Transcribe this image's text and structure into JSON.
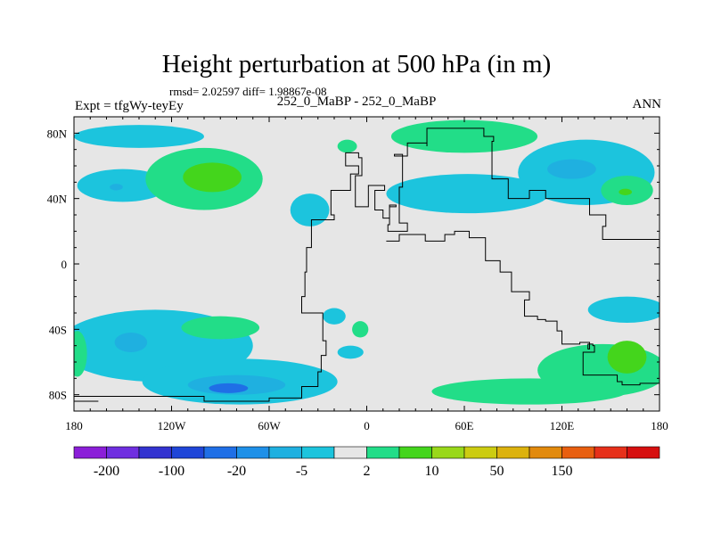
{
  "header": {
    "title": "Height perturbation at 500 hPa (in m)",
    "stats": "rmsd= 2.02597  diff= 1.98867e-08",
    "experiment": "Expt = tfgWy-teyEy",
    "comparison": "252_0_MaBP - 252_0_MaBP",
    "season": "ANN"
  },
  "chart_data": {
    "type": "heatmap",
    "title": "Height perturbation at 500 hPa (in m)",
    "projection": "cylindrical-equidistant",
    "xlim": [
      -180,
      180
    ],
    "ylim": [
      -90,
      90
    ],
    "x_ticks": [
      {
        "value": -180,
        "label": "180"
      },
      {
        "value": -120,
        "label": "120W"
      },
      {
        "value": -60,
        "label": "60W"
      },
      {
        "value": 0,
        "label": "0"
      },
      {
        "value": 60,
        "label": "60E"
      },
      {
        "value": 120,
        "label": "120E"
      },
      {
        "value": 180,
        "label": "180"
      }
    ],
    "y_ticks": [
      {
        "value": 80,
        "label": "80N"
      },
      {
        "value": 40,
        "label": "40N"
      },
      {
        "value": 0,
        "label": "0"
      },
      {
        "value": -40,
        "label": "40S"
      },
      {
        "value": -80,
        "label": "80S"
      }
    ],
    "colorbar": {
      "colors": [
        "#8b1ed8",
        "#6f2ee0",
        "#3333d0",
        "#1f46d8",
        "#1f6fe6",
        "#1e90e8",
        "#1fb0e0",
        "#1cc4dd",
        "#e6e6e6",
        "#22dd88",
        "#44d51c",
        "#99d81a",
        "#cccc11",
        "#dcb20e",
        "#e28a0d",
        "#e85f10",
        "#e6301a",
        "#d60f0f"
      ],
      "labels": [
        "-200",
        "-100",
        "-20",
        "-5",
        "2",
        "10",
        "50",
        "150"
      ],
      "label_boundaries": [
        1,
        3,
        5,
        7,
        9,
        11,
        13,
        15
      ]
    },
    "field_background": "#e6e6e6",
    "regions": [
      {
        "name": "N Pacific 80N band",
        "level": "-5",
        "color": "#1cc4dd",
        "lon": -140,
        "lat": 78,
        "rlon": 40,
        "rlat": 7
      },
      {
        "name": "NW Pacific low",
        "level": "-5",
        "color": "#1cc4dd",
        "lon": -150,
        "lat": 48,
        "rlon": 28,
        "rlat": 10
      },
      {
        "name": "NW Pacific core",
        "level": "-20",
        "color": "#1fb0e0",
        "lon": -154,
        "lat": 47,
        "rlon": 4,
        "rlat": 2
      },
      {
        "name": "N America high",
        "level": "2",
        "color": "#22dd88",
        "lon": -100,
        "lat": 52,
        "rlon": 36,
        "rlat": 19
      },
      {
        "name": "N America high core",
        "level": "10",
        "color": "#44d51c",
        "lon": -95,
        "lat": 53,
        "rlon": 18,
        "rlat": 9
      },
      {
        "name": "Atlantic high",
        "level": "2",
        "color": "#22dd88",
        "lon": -12,
        "lat": 72,
        "rlon": 6,
        "rlat": 4
      },
      {
        "name": "Atlantic low",
        "level": "-5",
        "color": "#1cc4dd",
        "lon": -35,
        "lat": 33,
        "rlon": 12,
        "rlat": 10
      },
      {
        "name": "Arctic high",
        "level": "2",
        "color": "#22dd88",
        "lon": 60,
        "lat": 78,
        "rlon": 45,
        "rlat": 10
      },
      {
        "name": "Europe low",
        "level": "-5",
        "color": "#1cc4dd",
        "lon": 62,
        "lat": 43,
        "rlon": 50,
        "rlat": 12
      },
      {
        "name": "Siberian low",
        "level": "-5",
        "color": "#1cc4dd",
        "lon": 135,
        "lat": 56,
        "rlon": 42,
        "rlat": 20
      },
      {
        "name": "Siberian low core",
        "level": "-20",
        "color": "#1fb0e0",
        "lon": 126,
        "lat": 58,
        "rlon": 15,
        "rlat": 6
      },
      {
        "name": "NE Pacific high",
        "level": "2",
        "color": "#22dd88",
        "lon": 160,
        "lat": 45,
        "rlon": 16,
        "rlat": 9
      },
      {
        "name": "NE Pacific high core",
        "level": "10",
        "color": "#44d51c",
        "lon": 159,
        "lat": 44,
        "rlon": 4,
        "rlat": 2
      },
      {
        "name": "S Pacific band",
        "level": "-5",
        "color": "#1cc4dd",
        "lon": -130,
        "lat": -50,
        "rlon": 60,
        "rlat": 22
      },
      {
        "name": "S Pacific low",
        "level": "-5",
        "color": "#1cc4dd",
        "lon": -78,
        "lat": -72,
        "rlon": 60,
        "rlat": 14
      },
      {
        "name": "S Pacific low core",
        "level": "-20",
        "color": "#1fb0e0",
        "lon": -145,
        "lat": -48,
        "rlon": 10,
        "rlat": 6
      },
      {
        "name": "S Ocean core",
        "level": "-20",
        "color": "#1fb0e0",
        "lon": -80,
        "lat": -74,
        "rlon": 30,
        "rlat": 6
      },
      {
        "name": "S Ocean deep core",
        "level": "-100",
        "color": "#1f6fe6",
        "lon": -85,
        "lat": -76,
        "rlon": 12,
        "rlat": 3
      },
      {
        "name": "S Pacific high",
        "level": "2",
        "color": "#22dd88",
        "lon": -90,
        "lat": -39,
        "rlon": 24,
        "rlat": 7
      },
      {
        "name": "S Atlantic low",
        "level": "-5",
        "color": "#1cc4dd",
        "lon": -20,
        "lat": -32,
        "rlon": 7,
        "rlat": 5
      },
      {
        "name": "S Atlantic low 2",
        "level": "-5",
        "color": "#1cc4dd",
        "lon": -10,
        "lat": -54,
        "rlon": 8,
        "rlat": 4
      },
      {
        "name": "S Indian high",
        "level": "2",
        "color": "#22dd88",
        "lon": -4,
        "lat": -40,
        "rlon": 5,
        "rlat": 5
      },
      {
        "name": "SW Pacific low",
        "level": "-5",
        "color": "#1cc4dd",
        "lon": 160,
        "lat": -28,
        "rlon": 24,
        "rlat": 8
      },
      {
        "name": "Australia high",
        "level": "2",
        "color": "#22dd88",
        "lon": 145,
        "lat": -65,
        "rlon": 40,
        "rlat": 16
      },
      {
        "name": "Australia high core",
        "level": "10",
        "color": "#44d51c",
        "lon": 160,
        "lat": -57,
        "rlon": 12,
        "rlat": 10
      },
      {
        "name": "S Ocean high band",
        "level": "2",
        "color": "#22dd88",
        "lon": 100,
        "lat": -78,
        "rlon": 60,
        "rlat": 8
      },
      {
        "name": "W edge high",
        "level": "2",
        "color": "#22dd88",
        "lon": -178,
        "lat": -55,
        "rlon": 6,
        "rlat": 14
      }
    ],
    "coastlines": [
      [
        [
          -180,
          -81
        ],
        [
          -125,
          -81
        ],
        [
          -100,
          -84
        ],
        [
          -60,
          -82
        ],
        [
          -40,
          -75
        ],
        [
          -30,
          -66
        ],
        [
          -28,
          -56
        ],
        [
          -25,
          -47
        ],
        [
          -27,
          -30
        ],
        [
          -40,
          -20
        ],
        [
          -38,
          -5
        ],
        [
          -37,
          10
        ],
        [
          -34,
          27
        ],
        [
          -20,
          30
        ],
        [
          -22,
          45
        ],
        [
          -10,
          55
        ],
        [
          -5,
          60
        ],
        [
          -13,
          68
        ],
        [
          -5,
          65
        ],
        [
          -3,
          54
        ],
        [
          -7,
          35
        ],
        [
          1,
          48
        ],
        [
          11,
          45
        ],
        [
          5,
          33
        ],
        [
          10,
          28
        ],
        [
          14,
          36
        ],
        [
          18,
          35
        ],
        [
          14,
          24
        ],
        [
          13,
          20
        ],
        [
          17,
          20
        ],
        [
          25,
          25
        ],
        [
          20,
          47
        ],
        [
          22,
          67
        ],
        [
          17,
          66
        ],
        [
          25,
          74
        ],
        [
          37,
          72
        ],
        [
          37,
          83
        ],
        [
          67,
          83
        ],
        [
          72,
          78
        ],
        [
          78,
          75
        ],
        [
          77,
          52
        ],
        [
          87,
          51
        ],
        [
          87,
          40
        ],
        [
          100,
          45
        ],
        [
          110,
          40
        ],
        [
          130,
          40
        ],
        [
          137,
          30
        ],
        [
          147,
          23
        ],
        [
          145,
          15
        ],
        [
          180,
          15
        ]
      ],
      [
        [
          12,
          14
        ],
        [
          20,
          18
        ],
        [
          36,
          14
        ],
        [
          48,
          18
        ],
        [
          54,
          20
        ],
        [
          63,
          16
        ],
        [
          73,
          2
        ],
        [
          82,
          -5
        ],
        [
          89,
          -17
        ],
        [
          100,
          -22
        ],
        [
          97,
          -32
        ],
        [
          105,
          -34
        ],
        [
          110,
          -35
        ],
        [
          117,
          -41
        ],
        [
          120,
          -49
        ],
        [
          131,
          -48
        ],
        [
          137,
          -52
        ],
        [
          136,
          -49
        ],
        [
          139,
          -50
        ],
        [
          140,
          -54
        ],
        [
          133,
          -68
        ],
        [
          150,
          -68
        ],
        [
          154,
          -72
        ],
        [
          157,
          -74
        ],
        [
          162,
          -74
        ],
        [
          168,
          -73
        ],
        [
          180,
          -73
        ]
      ],
      [
        [
          -180,
          -84
        ],
        [
          -165,
          -84
        ]
      ]
    ]
  }
}
